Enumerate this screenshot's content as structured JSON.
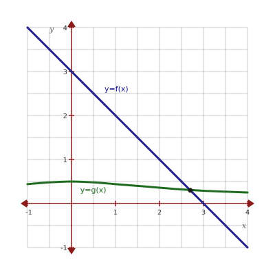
{
  "chart_data": {
    "type": "line",
    "xlabel": "x",
    "ylabel": "y",
    "xlim": [
      -1,
      4
    ],
    "ylim": [
      -1,
      4
    ],
    "grid": true,
    "grid_step": 0.5,
    "x_ticks": [
      -1,
      1,
      2,
      3,
      4
    ],
    "y_ticks": [
      -1,
      1,
      2,
      3,
      4
    ],
    "axis_color": "#8b1a1a",
    "grid_color": "#c8c8c8",
    "series": [
      {
        "name": "y=f(x)",
        "color": "#1f1f8c",
        "x": [
          -1,
          0,
          1,
          2,
          3,
          4
        ],
        "y": [
          4,
          3,
          2,
          1,
          0,
          -1
        ]
      },
      {
        "name": "y=g(x)",
        "color": "#1f6b1f",
        "x": [
          -1,
          -0.5,
          0,
          0.5,
          1,
          1.5,
          2,
          2.5,
          3,
          3.5,
          4
        ],
        "y": [
          0.44,
          0.48,
          0.5,
          0.48,
          0.44,
          0.4,
          0.36,
          0.32,
          0.29,
          0.27,
          0.25
        ]
      }
    ],
    "intersection": {
      "x": 2.7,
      "y": 0.3,
      "color": "#1a1a1a"
    }
  }
}
